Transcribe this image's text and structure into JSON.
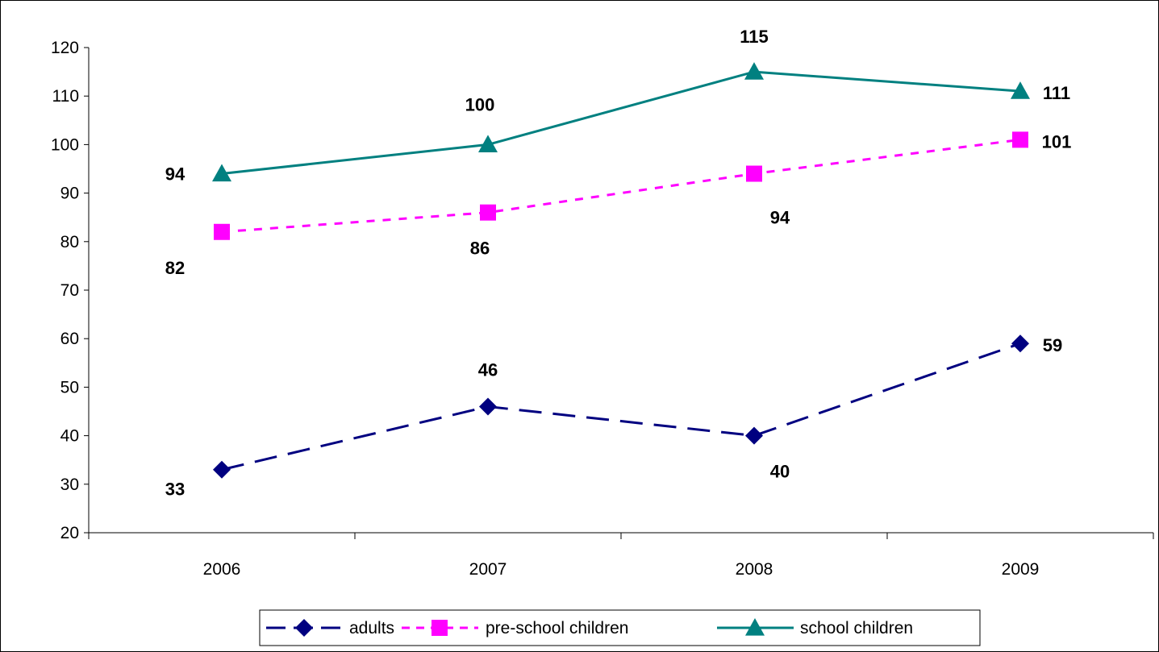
{
  "chart_data": {
    "type": "line",
    "title": "",
    "xlabel": "",
    "ylabel": "",
    "categories": [
      "2006",
      "2007",
      "2008",
      "2009"
    ],
    "ylim": [
      20,
      120
    ],
    "yticks": [
      20,
      30,
      40,
      50,
      60,
      70,
      80,
      90,
      100,
      110,
      120
    ],
    "grid": false,
    "legend": "bottom",
    "series": [
      {
        "name": "adults",
        "values": [
          33,
          46,
          40,
          59
        ],
        "labels": [
          "33",
          "46",
          "40",
          "59"
        ],
        "color": "#000080",
        "dash": "long-dash",
        "marker": "diamond"
      },
      {
        "name": "pre-school children",
        "values": [
          82,
          86,
          94,
          101
        ],
        "labels": [
          "82",
          "86",
          "94",
          "101"
        ],
        "color": "#ff00ff",
        "dash": "short-dash",
        "marker": "square"
      },
      {
        "name": "school children",
        "values": [
          94,
          100,
          115,
          111
        ],
        "labels": [
          "94",
          "100",
          "115",
          "111"
        ],
        "color": "#008080",
        "dash": "solid",
        "marker": "triangle"
      }
    ]
  }
}
